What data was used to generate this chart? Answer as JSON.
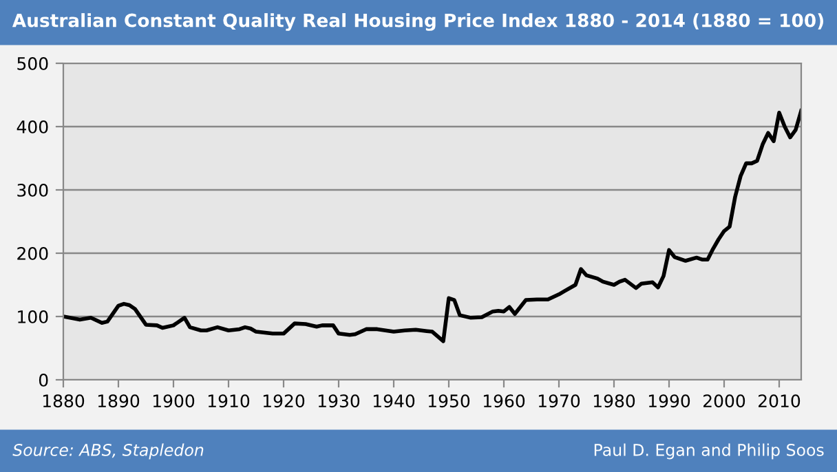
{
  "chart_data": {
    "type": "line",
    "title": "Australian Constant Quality Real Housing Price Index 1880 - 2014 (1880 = 100)",
    "x": [
      1880,
      1883,
      1885,
      1887,
      1888,
      1890,
      1891,
      1892,
      1893,
      1895,
      1897,
      1898,
      1900,
      1902,
      1903,
      1905,
      1906,
      1908,
      1910,
      1912,
      1913,
      1914,
      1915,
      1918,
      1920,
      1922,
      1924,
      1926,
      1927,
      1929,
      1930,
      1932,
      1933,
      1935,
      1937,
      1940,
      1942,
      1944,
      1946,
      1947,
      1949,
      1950,
      1951,
      1952,
      1954,
      1956,
      1958,
      1959,
      1960,
      1961,
      1962,
      1964,
      1966,
      1968,
      1970,
      1971,
      1973,
      1974,
      1975,
      1977,
      1978,
      1980,
      1981,
      1982,
      1984,
      1985,
      1987,
      1988,
      1989,
      1990,
      1991,
      1993,
      1995,
      1996,
      1997,
      1998,
      1999,
      2000,
      2001,
      2002,
      2003,
      2004,
      2005,
      2006,
      2007,
      2008,
      2009,
      2010,
      2011,
      2012,
      2013,
      2014
    ],
    "series": [
      {
        "color": "#000000",
        "values": [
          100,
          95,
          98,
          90,
          92,
          117,
          120,
          118,
          112,
          87,
          86,
          82,
          86,
          98,
          83,
          78,
          78,
          83,
          78,
          80,
          83,
          81,
          76,
          73,
          73,
          89,
          88,
          84,
          86,
          86,
          73,
          71,
          72,
          80,
          80,
          76,
          78,
          79,
          77,
          76,
          61,
          129,
          126,
          102,
          98,
          99,
          108,
          109,
          108,
          115,
          104,
          126,
          127,
          127,
          135,
          140,
          150,
          175,
          165,
          160,
          155,
          150,
          155,
          158,
          145,
          152,
          154,
          146,
          164,
          205,
          194,
          188,
          193,
          190,
          190,
          207,
          222,
          235,
          242,
          289,
          322,
          342,
          342,
          346,
          372,
          390,
          377,
          422,
          400,
          383,
          395,
          425
        ]
      }
    ],
    "xlim": [
      1880,
      2014
    ],
    "xticks": [
      1880,
      1890,
      1900,
      1910,
      1920,
      1930,
      1940,
      1950,
      1960,
      1970,
      1980,
      1990,
      2000,
      2010
    ],
    "ylim": [
      0,
      500
    ],
    "yticks": [
      0,
      100,
      200,
      300,
      400,
      500
    ],
    "grid": "y",
    "legend": false,
    "marker": "none",
    "line_style": "solid",
    "annotations": [
      "Source: ABS, Stapledon",
      "Paul D. Egan and Philip Soos"
    ]
  }
}
